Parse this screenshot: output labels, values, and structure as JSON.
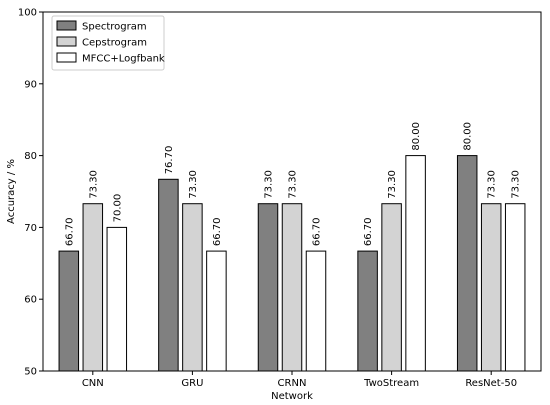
{
  "chart_data": {
    "type": "bar",
    "title": "",
    "xlabel": "Network",
    "ylabel": "Accuracy / %",
    "ylim": [
      50,
      100
    ],
    "yticks": [
      50,
      60,
      70,
      80,
      90,
      100
    ],
    "grid": false,
    "legend_position": "top-left",
    "categories": [
      "CNN",
      "GRU",
      "CRNN",
      "TwoStream",
      "ResNet-50"
    ],
    "series": [
      {
        "name": "Spectrogram",
        "color": "#808080",
        "values": [
          66.7,
          76.7,
          73.3,
          66.7,
          80.0
        ],
        "labels": [
          "66.70",
          "76.70",
          "73.30",
          "66.70",
          "80.00"
        ]
      },
      {
        "name": "Cepstrogram",
        "color": "#d3d3d3",
        "values": [
          73.3,
          73.3,
          73.3,
          73.3,
          73.3
        ],
        "labels": [
          "73.30",
          "73.30",
          "73.30",
          "73.30",
          "73.30"
        ]
      },
      {
        "name": "MFCC+Logfbank",
        "color": "#ffffff",
        "values": [
          70.0,
          66.7,
          66.7,
          80.0,
          73.3
        ],
        "labels": [
          "70.00",
          "66.70",
          "66.70",
          "80.00",
          "73.30"
        ]
      }
    ]
  }
}
